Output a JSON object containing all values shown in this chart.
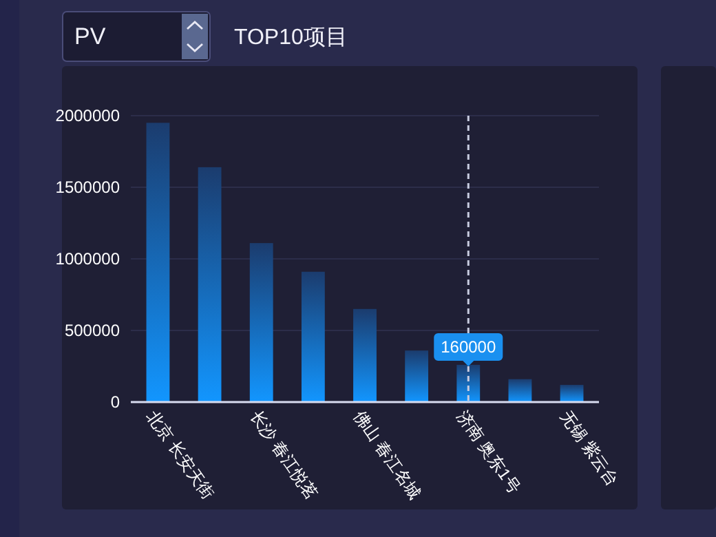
{
  "chart_data": {
    "type": "bar",
    "title": "TOP10项目",
    "categories": [
      "北京 长安天街",
      null,
      "长沙 春江悦茗",
      null,
      "佛山 春江名城",
      null,
      "济南 奥东1号",
      null,
      "无锡 紫云台"
    ],
    "values": [
      1950000,
      1640000,
      1110000,
      910000,
      650000,
      360000,
      260000,
      160000,
      120000
    ],
    "color": "#1296ff",
    "ylim": [
      0,
      2000000
    ],
    "yticks": [
      0,
      500000,
      1000000,
      1500000,
      2000000
    ],
    "grid": "y",
    "ref_lines": [
      {
        "axis": "x",
        "value": "济南 奥东1号",
        "label": "160000",
        "line_style": "dashed"
      }
    ],
    "annotations": [
      "PV"
    ]
  }
}
